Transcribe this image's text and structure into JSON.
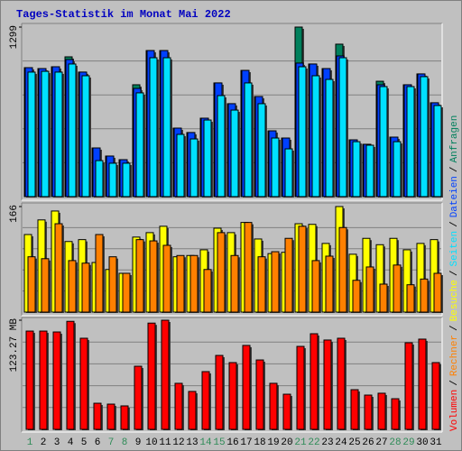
{
  "chart_data": {
    "type": "bar",
    "title": "Tages-Statistik im Monat Mai 2022",
    "legend_separator": "/",
    "categories": [
      "1",
      "2",
      "3",
      "4",
      "5",
      "6",
      "7",
      "8",
      "9",
      "10",
      "11",
      "12",
      "13",
      "14",
      "15",
      "16",
      "17",
      "18",
      "19",
      "20",
      "21",
      "22",
      "23",
      "24",
      "25",
      "26",
      "27",
      "28",
      "29",
      "30",
      "31"
    ],
    "category_colors": [
      "#2e8b57",
      "#000000",
      "#000000",
      "#000000",
      "#000000",
      "#000000",
      "#2e8b57",
      "#2e8b57",
      "#000000",
      "#000000",
      "#000000",
      "#000000",
      "#000000",
      "#2e8b57",
      "#2e8b57",
      "#000000",
      "#000000",
      "#000000",
      "#000000",
      "#000000",
      "#2e8b57",
      "#2e8b57",
      "#000000",
      "#000000",
      "#000000",
      "#000000",
      "#000000",
      "#2e8b57",
      "#2e8b57",
      "#000000",
      "#000000"
    ],
    "panels": [
      {
        "ylim": [
          0,
          1299
        ],
        "yticks": [
          1299
        ],
        "series": [
          {
            "name": "Anfragen",
            "color": "#00805c",
            "values": [
              988,
              981,
              995,
              1071,
              954,
              373,
              311,
              283,
              857,
              1119,
              1119,
              525,
              491,
              601,
              871,
              712,
              967,
              767,
              504,
              449,
              1299,
              1016,
              981,
              1168,
              435,
              401,
              884,
              456,
              857,
              940,
              719
            ]
          },
          {
            "name": "Dateien",
            "color": "#0040ff",
            "values": [
              988,
              981,
              995,
              1050,
              954,
              373,
              311,
              283,
              829,
              1119,
              1119,
              525,
              491,
              601,
              871,
              712,
              967,
              767,
              504,
              449,
              1023,
              1016,
              981,
              1078,
              435,
              401,
              857,
              456,
              857,
              940,
              719
            ]
          },
          {
            "name": "Seiten",
            "color": "#00e0ff",
            "values": [
              954,
              960,
              954,
              1016,
              926,
              276,
              256,
              256,
              795,
              1064,
              1064,
              477,
              442,
              587,
              774,
              663,
              871,
              712,
              449,
              366,
              995,
              926,
              898,
              1064,
              421,
              394,
              843,
              421,
              843,
              919,
              698
            ]
          }
        ]
      },
      {
        "ylim": [
          0,
          166
        ],
        "yticks": [
          166
        ],
        "series": [
          {
            "name": "Besuche",
            "color": "#ffff00",
            "values": [
              122,
              145,
              159,
              111,
              114,
              78,
              67,
              61,
              118,
              125,
              135,
              87,
              89,
              98,
              132,
              125,
              141,
              115,
              92,
              94,
              139,
              138,
              108,
              166,
              91,
              116,
              106,
              116,
              98,
              108,
              114
            ]
          },
          {
            "name": "Rechner",
            "color": "#ff8000",
            "values": [
              87,
              84,
              139,
              81,
              77,
              122,
              87,
              61,
              114,
              112,
              105,
              89,
              89,
              67,
              125,
              89,
              141,
              87,
              95,
              116,
              135,
              81,
              88,
              133,
              50,
              71,
              44,
              74,
              43,
              52,
              61
            ]
          }
        ]
      },
      {
        "ylim": [
          0,
          123.27
        ],
        "yticks": [
          {
            "value": 123.27,
            "label": "123.27 MB"
          }
        ],
        "series": [
          {
            "name": "Volumen",
            "color": "#ff0000",
            "values": [
              111,
              111,
              110,
              122,
              102.9,
              29.5,
              28.5,
              26.5,
              71.3,
              120,
              123.27,
              52,
              42.8,
              65.2,
              83.5,
              75.4,
              94.8,
              78.4,
              52,
              39.7,
              93.7,
              108,
              100.9,
              102.9,
              44.8,
              38.7,
              40.8,
              34.6,
              97.8,
              101.9,
              75.4
            ]
          }
        ]
      }
    ]
  }
}
